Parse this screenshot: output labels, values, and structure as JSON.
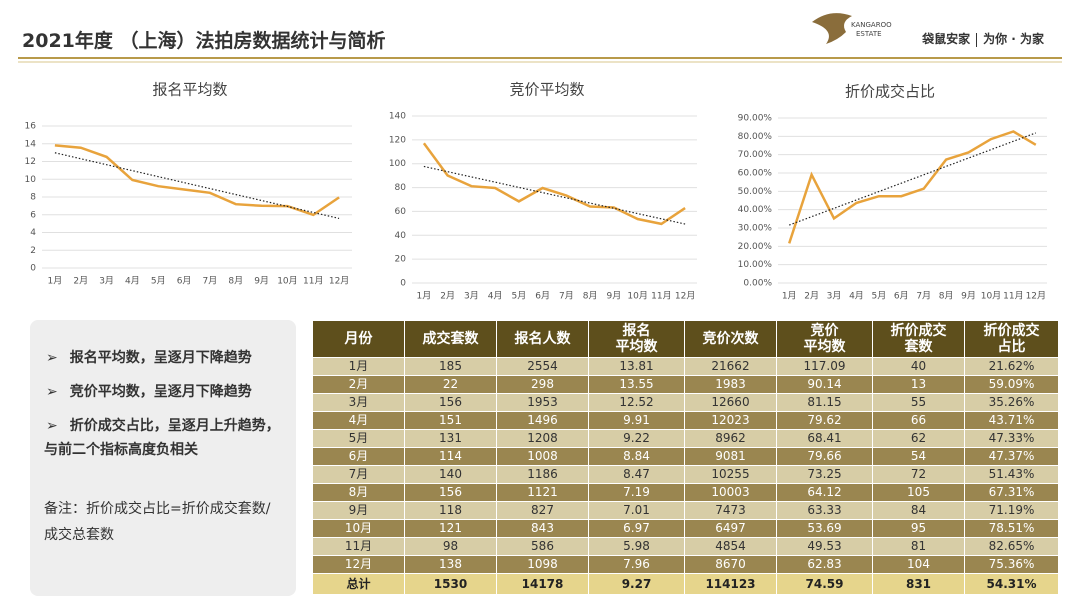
{
  "header": {
    "title": "2021年度 （上海）法拍房数据统计与简析",
    "logo_text": [
      "KANGAROO",
      "ESTATE"
    ],
    "brand": "袋鼠安家",
    "slogan": "为你 · 为家"
  },
  "chart_data": [
    {
      "type": "line",
      "title": "报名平均数",
      "categories": [
        "1月",
        "2月",
        "3月",
        "4月",
        "5月",
        "6月",
        "7月",
        "8月",
        "9月",
        "10月",
        "11月",
        "12月"
      ],
      "values": [
        13.81,
        13.55,
        12.52,
        9.91,
        9.22,
        8.84,
        8.47,
        7.19,
        7.01,
        6.97,
        5.98,
        7.96
      ],
      "color": "#e8a33c",
      "trendline": true,
      "ylim": [
        0,
        16
      ],
      "yticks": [
        0,
        2,
        4,
        6,
        8,
        10,
        12,
        14,
        16
      ],
      "grid": true
    },
    {
      "type": "line",
      "title": "竞价平均数",
      "categories": [
        "1月",
        "2月",
        "3月",
        "4月",
        "5月",
        "6月",
        "7月",
        "8月",
        "9月",
        "10月",
        "11月",
        "12月"
      ],
      "values": [
        117.09,
        90.14,
        81.15,
        79.62,
        68.41,
        79.66,
        73.25,
        64.12,
        63.33,
        53.69,
        49.53,
        62.83
      ],
      "color": "#e8a33c",
      "trendline": true,
      "ylim": [
        0,
        140
      ],
      "yticks": [
        0,
        20,
        40,
        60,
        80,
        100,
        120,
        140
      ],
      "grid": true
    },
    {
      "type": "line",
      "title": "折价成交占比",
      "categories": [
        "1月",
        "2月",
        "3月",
        "4月",
        "5月",
        "6月",
        "7月",
        "8月",
        "9月",
        "10月",
        "11月",
        "12月"
      ],
      "values": [
        21.62,
        59.09,
        35.26,
        43.71,
        47.33,
        47.37,
        51.43,
        67.31,
        71.19,
        78.51,
        82.65,
        75.36
      ],
      "color": "#e8a33c",
      "trendline": true,
      "ylim": [
        0,
        90
      ],
      "yticks": [
        {
          "value": 0,
          "label": "0.00%"
        },
        {
          "value": 10,
          "label": "10.00%"
        },
        {
          "value": 20,
          "label": "20.00%"
        },
        {
          "value": 30,
          "label": "30.00%"
        },
        {
          "value": 40,
          "label": "40.00%"
        },
        {
          "value": 50,
          "label": "50.00%"
        },
        {
          "value": 60,
          "label": "60.00%"
        },
        {
          "value": 70,
          "label": "70.00%"
        },
        {
          "value": 80,
          "label": "80.00%"
        },
        {
          "value": 90,
          "label": "90.00%"
        }
      ],
      "grid": true
    }
  ],
  "notes": {
    "bullets": [
      "报名平均数，呈逐月下降趋势",
      "竞价平均数，呈逐月下降趋势",
      "折价成交占比，呈逐月上升趋势，与前二个指标高度负相关"
    ],
    "remark": "备注：折价成交占比=折价成交套数/成交总套数"
  },
  "table": {
    "columns": [
      [
        "月份"
      ],
      [
        "成交套数"
      ],
      [
        "报名人数"
      ],
      [
        "报名",
        "平均数"
      ],
      [
        "竞价次数"
      ],
      [
        "竞价",
        "平均数"
      ],
      [
        "折价成交",
        "套数"
      ],
      [
        "折价成交",
        "占比"
      ]
    ],
    "rows": [
      [
        "1月",
        185,
        2554,
        13.81,
        21662,
        117.09,
        40,
        "21.62%"
      ],
      [
        "2月",
        22,
        298,
        13.55,
        1983,
        90.14,
        13,
        "59.09%"
      ],
      [
        "3月",
        156,
        1953,
        12.52,
        12660,
        81.15,
        55,
        "35.26%"
      ],
      [
        "4月",
        151,
        1496,
        9.91,
        12023,
        79.62,
        66,
        "43.71%"
      ],
      [
        "5月",
        131,
        1208,
        9.22,
        8962,
        68.41,
        62,
        "47.33%"
      ],
      [
        "6月",
        114,
        1008,
        8.84,
        9081,
        79.66,
        54,
        "47.37%"
      ],
      [
        "7月",
        140,
        1186,
        8.47,
        10255,
        73.25,
        72,
        "51.43%"
      ],
      [
        "8月",
        156,
        1121,
        7.19,
        10003,
        64.12,
        105,
        "67.31%"
      ],
      [
        "9月",
        118,
        827,
        7.01,
        7473,
        63.33,
        84,
        "71.19%"
      ],
      [
        "10月",
        121,
        843,
        6.97,
        6497,
        53.69,
        95,
        "78.51%"
      ],
      [
        "11月",
        98,
        586,
        5.98,
        4854,
        49.53,
        81,
        "82.65%"
      ],
      [
        "12月",
        138,
        1098,
        7.96,
        8670,
        62.83,
        104,
        "75.36%"
      ]
    ],
    "total": [
      "总计",
      1530,
      14178,
      9.27,
      114123,
      74.59,
      831,
      "54.31%"
    ]
  }
}
